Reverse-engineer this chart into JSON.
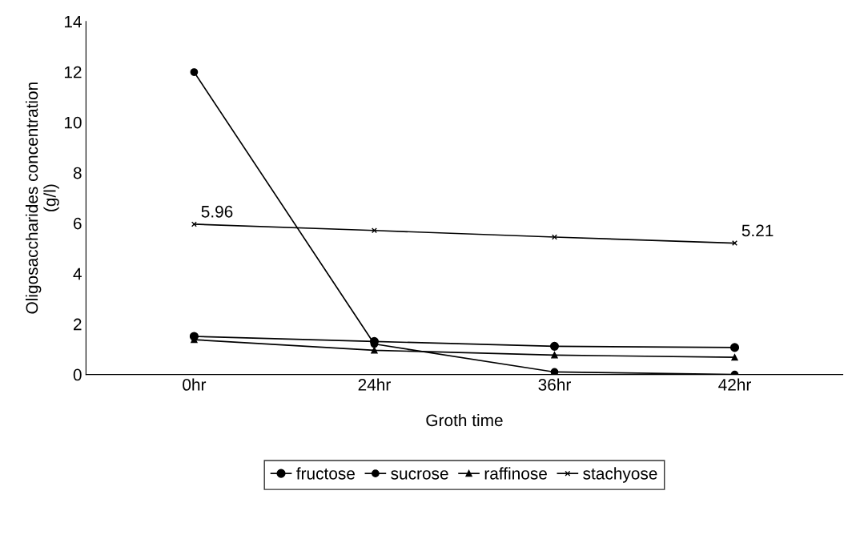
{
  "chart_data": {
    "type": "line",
    "xlabel": "Groth time",
    "ylabel": "Oligosaccharides concentration\n(g/l)",
    "categories": [
      "0hr",
      "24hr",
      "36hr",
      "42hr"
    ],
    "series": [
      {
        "name": "fructose",
        "color": "#000000",
        "marker": "circle",
        "values": [
          1.51,
          1.31,
          1.12,
          1.07
        ]
      },
      {
        "name": "sucrose",
        "color": "#000000",
        "marker": "circle",
        "values": [
          11.99,
          1.21,
          0.1,
          0.0
        ]
      },
      {
        "name": "raffinose",
        "color": "#000000",
        "marker": "triangle",
        "values": [
          1.38,
          0.96,
          0.77,
          0.68
        ]
      },
      {
        "name": "stachyose",
        "color": "#000000",
        "marker": "cross",
        "values": [
          5.96,
          5.71,
          5.45,
          5.21
        ],
        "value_labels": [
          "5.96",
          null,
          null,
          "5.21"
        ]
      }
    ],
    "ylim": [
      0,
      14
    ],
    "yticks": [
      0,
      2,
      4,
      6,
      8,
      10,
      12,
      14
    ],
    "grid": false,
    "legend": "bottom",
    "line_style": "solid"
  }
}
